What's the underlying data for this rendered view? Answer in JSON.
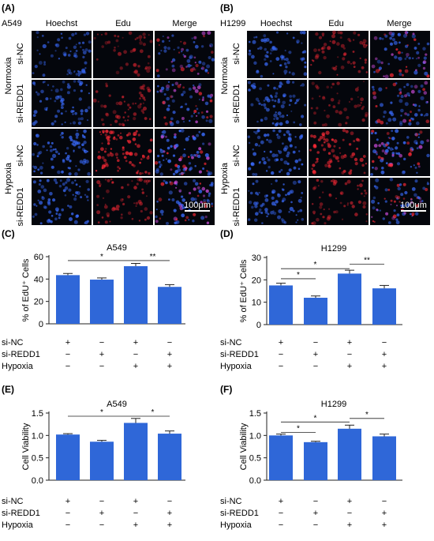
{
  "colors": {
    "bar": "#2f67d8",
    "axis": "#222222",
    "tile_bg": "#04060c",
    "hoechst": "#3a6cff",
    "edu": "#ff2a36"
  },
  "panel_a": {
    "letter": "(A)",
    "cell_line": "A549",
    "columns": [
      "Hoechst",
      "Edu",
      "Merge"
    ],
    "group_labels": [
      "Normoxia",
      "Hypoxia"
    ],
    "row_labels": [
      "si-NC",
      "si-REDD1",
      "si-NC",
      "si-REDD1"
    ],
    "scale_bar": "100μm",
    "tile_levels": [
      [
        0.45,
        0.22,
        0.5
      ],
      [
        0.55,
        0.35,
        0.6
      ],
      [
        0.7,
        0.75,
        0.8
      ],
      [
        0.65,
        0.4,
        0.7
      ]
    ]
  },
  "panel_b": {
    "letter": "(B)",
    "cell_line": "H1299",
    "columns": [
      "Hoechst",
      "Edu",
      "Merge"
    ],
    "group_labels": [
      "Normoxia",
      "Hypoxia"
    ],
    "row_labels": [
      "si-NC",
      "si-REDD1",
      "si-NC",
      "si-REDD1"
    ],
    "scale_bar": "100μm",
    "tile_levels": [
      [
        0.55,
        0.4,
        0.6
      ],
      [
        0.6,
        0.2,
        0.55
      ],
      [
        0.7,
        0.6,
        0.75
      ],
      [
        0.6,
        0.35,
        0.6
      ]
    ]
  },
  "chart_data": [
    {
      "letter": "(C)",
      "type": "bar",
      "title": "A549",
      "ylabel": "% of EdU⁺ Cells",
      "categories": [
        "1",
        "2",
        "3",
        "4"
      ],
      "values": [
        43.5,
        39.5,
        51.5,
        33.0
      ],
      "errors": [
        1.5,
        1.5,
        2.5,
        2.0
      ],
      "ylim": [
        0,
        60
      ],
      "yticks": [
        "0",
        "20",
        "40",
        "60"
      ],
      "ytick_values": [
        0,
        20,
        40,
        60
      ],
      "brackets": [
        {
          "from": 0,
          "to": 2,
          "label": "*",
          "y": 56.5
        },
        {
          "from": 2,
          "to": 3,
          "label": "**",
          "y": 56.5
        }
      ],
      "conditions": {
        "names": [
          "si-NC",
          "si-REDD1",
          "Hypoxia"
        ],
        "rows": [
          [
            "+",
            "−",
            "+",
            "−"
          ],
          [
            "−",
            "+",
            "−",
            "+"
          ],
          [
            "−",
            "−",
            "+",
            "+"
          ]
        ]
      }
    },
    {
      "letter": "(D)",
      "type": "bar",
      "title": "H1299",
      "ylabel": "% of EdU⁺ Cells",
      "categories": [
        "1",
        "2",
        "3",
        "4"
      ],
      "values": [
        17.5,
        12.0,
        22.8,
        16.2
      ],
      "errors": [
        1.0,
        0.8,
        1.5,
        1.3
      ],
      "ylim": [
        0,
        30
      ],
      "yticks": [
        "0",
        "10",
        "20",
        "30"
      ],
      "ytick_values": [
        0,
        10,
        20,
        30
      ],
      "brackets": [
        {
          "from": 0,
          "to": 1,
          "label": "*",
          "y": 20.5
        },
        {
          "from": 0,
          "to": 2,
          "label": "*",
          "y": 25.0
        },
        {
          "from": 2,
          "to": 3,
          "label": "**",
          "y": 27.0
        }
      ],
      "conditions": {
        "names": [
          "si-NC",
          "si-REDD1",
          "Hypoxia"
        ],
        "rows": [
          [
            "+",
            "−",
            "+",
            "−"
          ],
          [
            "−",
            "+",
            "−",
            "+"
          ],
          [
            "−",
            "−",
            "+",
            "+"
          ]
        ]
      }
    },
    {
      "letter": "(E)",
      "type": "bar",
      "title": "A549",
      "ylabel": "Cell Viability",
      "categories": [
        "1",
        "2",
        "3",
        "4"
      ],
      "values": [
        1.02,
        0.86,
        1.28,
        1.04
      ],
      "errors": [
        0.02,
        0.03,
        0.1,
        0.06
      ],
      "ylim": [
        0,
        1.5
      ],
      "yticks": [
        "0.0",
        "0.5",
        "1.0",
        "1.5"
      ],
      "ytick_values": [
        0,
        0.5,
        1.0,
        1.5
      ],
      "brackets": [
        {
          "from": 0,
          "to": 2,
          "label": "*",
          "y": 1.43
        },
        {
          "from": 2,
          "to": 3,
          "label": "*",
          "y": 1.43
        }
      ],
      "conditions": {
        "names": [
          "si-NC",
          "si-REDD1",
          "Hypoxia"
        ],
        "rows": [
          [
            "+",
            "−",
            "+",
            "−"
          ],
          [
            "−",
            "+",
            "−",
            "+"
          ],
          [
            "−",
            "−",
            "+",
            "+"
          ]
        ]
      }
    },
    {
      "letter": "(F)",
      "type": "bar",
      "title": "H1299",
      "ylabel": "Cell Viability",
      "categories": [
        "1",
        "2",
        "3",
        "4"
      ],
      "values": [
        1.0,
        0.85,
        1.15,
        0.98
      ],
      "errors": [
        0.03,
        0.02,
        0.08,
        0.05
      ],
      "ylim": [
        0,
        1.5
      ],
      "yticks": [
        "0.0",
        "0.5",
        "1.0",
        "1.5"
      ],
      "ytick_values": [
        0,
        0.5,
        1.0,
        1.5
      ],
      "brackets": [
        {
          "from": 0,
          "to": 1,
          "label": "*",
          "y": 1.07
        },
        {
          "from": 0,
          "to": 2,
          "label": "*",
          "y": 1.3
        },
        {
          "from": 2,
          "to": 3,
          "label": "*",
          "y": 1.38
        }
      ],
      "conditions": {
        "names": [
          "si-NC",
          "si-REDD1",
          "Hypoxia"
        ],
        "rows": [
          [
            "+",
            "−",
            "+",
            "−"
          ],
          [
            "−",
            "+",
            "−",
            "+"
          ],
          [
            "−",
            "−",
            "+",
            "+"
          ]
        ]
      }
    }
  ]
}
